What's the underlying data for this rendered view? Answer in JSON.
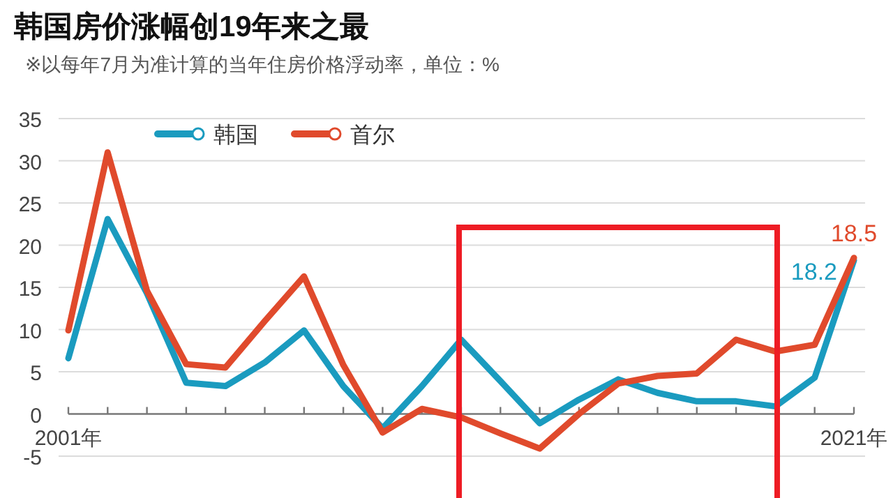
{
  "chart_data": {
    "type": "line",
    "title": "韩国房价涨幅创19年来之最",
    "subtitle": "※以每年7月为准计算的当年住房价格浮动率，单位：%",
    "x": [
      2001,
      2002,
      2003,
      2004,
      2005,
      2006,
      2007,
      2008,
      2009,
      2010,
      2011,
      2012,
      2013,
      2014,
      2015,
      2016,
      2017,
      2018,
      2019,
      2020,
      2021
    ],
    "series": [
      {
        "name": "韩国",
        "color": "#1a9bbf",
        "values": [
          6.6,
          23.1,
          14.3,
          3.7,
          3.3,
          6.1,
          9.9,
          3.3,
          -1.7,
          3.3,
          8.8,
          3.9,
          -1.1,
          1.7,
          4.1,
          2.5,
          1.5,
          1.5,
          0.9,
          4.3,
          18.2
        ]
      },
      {
        "name": "首尔",
        "color": "#e04a2c",
        "values": [
          9.9,
          31.0,
          14.6,
          5.9,
          5.5,
          11.0,
          16.3,
          5.8,
          -2.2,
          0.6,
          -0.4,
          -2.3,
          -4.1,
          0.0,
          3.6,
          4.5,
          4.8,
          8.8,
          7.4,
          8.2,
          18.5
        ]
      }
    ],
    "xlim": [
      2001,
      2021
    ],
    "xticks": [
      {
        "value": 2001,
        "label": "2001年"
      },
      {
        "value": 2002,
        "label": null
      },
      {
        "value": 2003,
        "label": null
      },
      {
        "value": 2004,
        "label": null
      },
      {
        "value": 2005,
        "label": null
      },
      {
        "value": 2006,
        "label": null
      },
      {
        "value": 2007,
        "label": null
      },
      {
        "value": 2008,
        "label": null
      },
      {
        "value": 2009,
        "label": null
      },
      {
        "value": 2010,
        "label": null
      },
      {
        "value": 2011,
        "label": null
      },
      {
        "value": 2012,
        "label": null
      },
      {
        "value": 2013,
        "label": null
      },
      {
        "value": 2014,
        "label": null
      },
      {
        "value": 2015,
        "label": null
      },
      {
        "value": 2016,
        "label": null
      },
      {
        "value": 2017,
        "label": null
      },
      {
        "value": 2018,
        "label": null
      },
      {
        "value": 2019,
        "label": null
      },
      {
        "value": 2020,
        "label": null
      },
      {
        "value": 2021,
        "label": "2021年"
      }
    ],
    "ylim": [
      -5,
      35
    ],
    "yticks": [
      -5,
      0,
      5,
      10,
      15,
      20,
      25,
      30,
      35
    ],
    "grid": "y",
    "legend": "top",
    "annotations": [
      {
        "text": "18.5",
        "x": 2021,
        "y": 18.5
      },
      {
        "text": "18.2",
        "x": 2021,
        "y": 18.2
      }
    ]
  }
}
